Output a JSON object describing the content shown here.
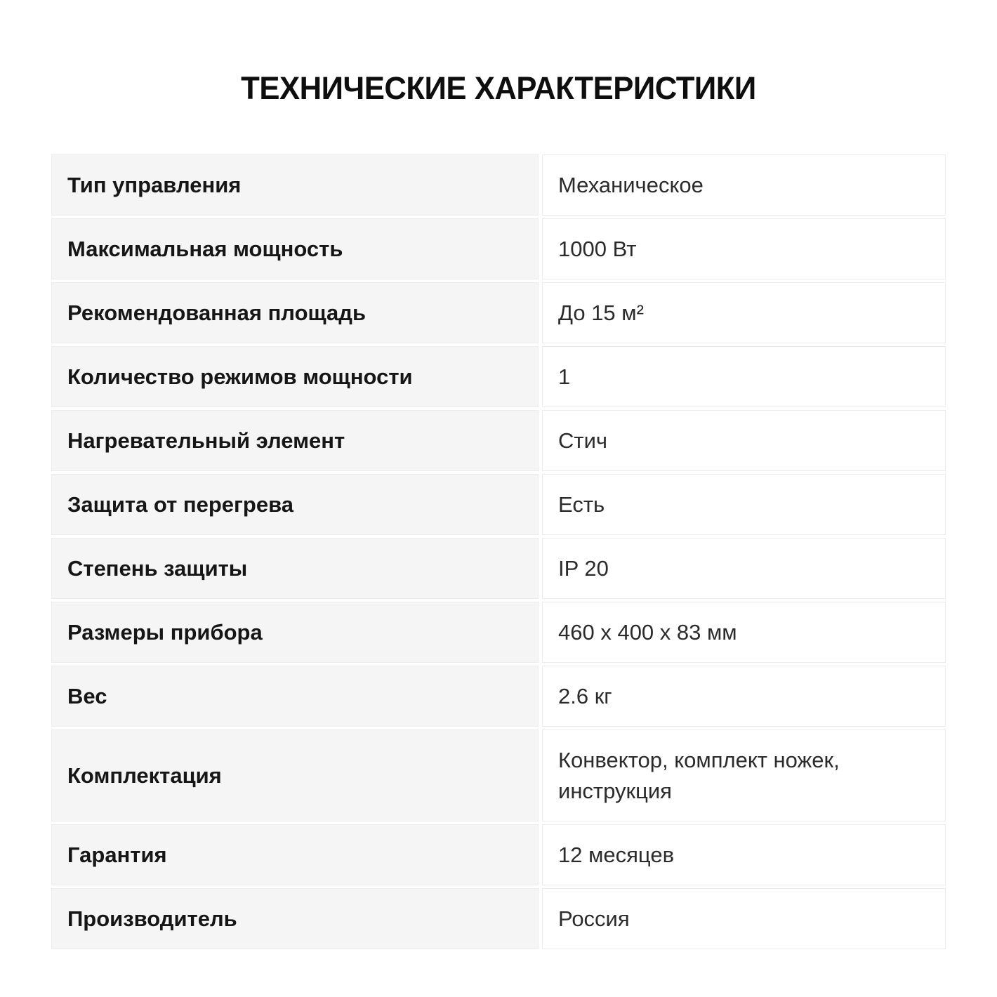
{
  "page": {
    "title": "ТЕХНИЧЕСКИЕ ХАРАКТЕРИСТИКИ"
  },
  "colors": {
    "label_background": "#f5f5f5",
    "value_background": "#ffffff",
    "border": "#ececec",
    "text": "#1d1d1f"
  },
  "table": {
    "rows": [
      {
        "label": "Тип управления",
        "value": "Механическое"
      },
      {
        "label": "Максимальная мощность",
        "value": "1000 Вт"
      },
      {
        "label": "Рекомендованная площадь",
        "value": "До 15 м²"
      },
      {
        "label": "Количество режимов мощности",
        "value": "1"
      },
      {
        "label": "Нагревательный элемент",
        "value": "Стич"
      },
      {
        "label": "Защита от перегрева",
        "value": "Есть"
      },
      {
        "label": "Степень защиты",
        "value": "IP 20"
      },
      {
        "label": "Размеры прибора",
        "value": "460 x 400 x 83 мм"
      },
      {
        "label": "Вес",
        "value": "2.6 кг"
      },
      {
        "label": "Комплектация",
        "value": "Конвектор, комплект ножек, инструкция"
      },
      {
        "label": "Гарантия",
        "value": "12 месяцев"
      },
      {
        "label": "Производитель",
        "value": "Россия"
      }
    ]
  }
}
